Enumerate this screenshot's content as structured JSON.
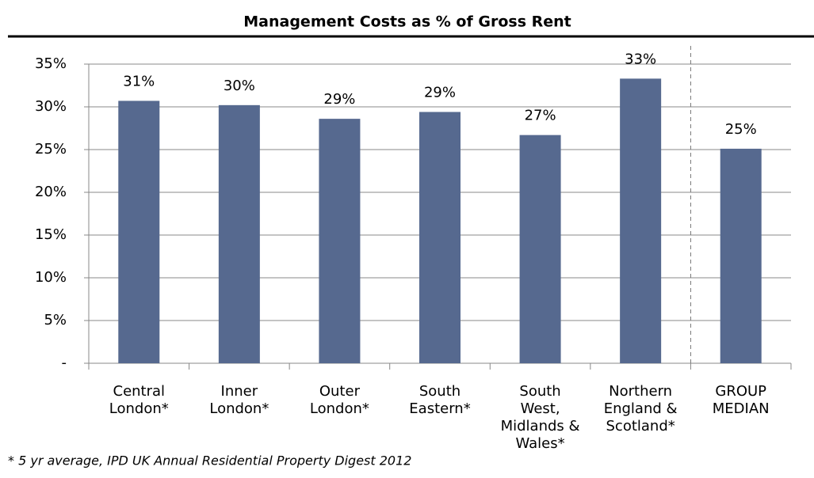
{
  "chart_data": {
    "type": "bar",
    "title": "Management Costs as % of Gross Rent",
    "categories": [
      [
        "Central",
        "London*"
      ],
      [
        "Inner",
        "London*"
      ],
      [
        "Outer",
        "London*"
      ],
      [
        "South",
        "Eastern*"
      ],
      [
        "South",
        "West,",
        "Midlands &",
        "Wales*"
      ],
      [
        "Northern",
        "England &",
        "Scotland*"
      ],
      [
        "GROUP",
        "MEDIAN"
      ]
    ],
    "values": [
      30.7,
      30.2,
      28.6,
      29.4,
      26.7,
      33.3,
      25.1
    ],
    "value_labels": [
      "31%",
      "30%",
      "29%",
      "29%",
      "27%",
      "33%",
      "25%"
    ],
    "color": "#56698f",
    "ylim": [
      0,
      35
    ],
    "yticks": [
      {
        "value": 0,
        "label": "-"
      },
      {
        "value": 5,
        "label": "5%"
      },
      {
        "value": 10,
        "label": "10%"
      },
      {
        "value": 15,
        "label": "15%"
      },
      {
        "value": 20,
        "label": "20%"
      },
      {
        "value": 25,
        "label": "25%"
      },
      {
        "value": 30,
        "label": "30%"
      },
      {
        "value": 35,
        "label": "35%"
      }
    ],
    "grid": true,
    "footnote": "* 5 yr average, IPD UK Annual Residential Property Digest 2012"
  }
}
